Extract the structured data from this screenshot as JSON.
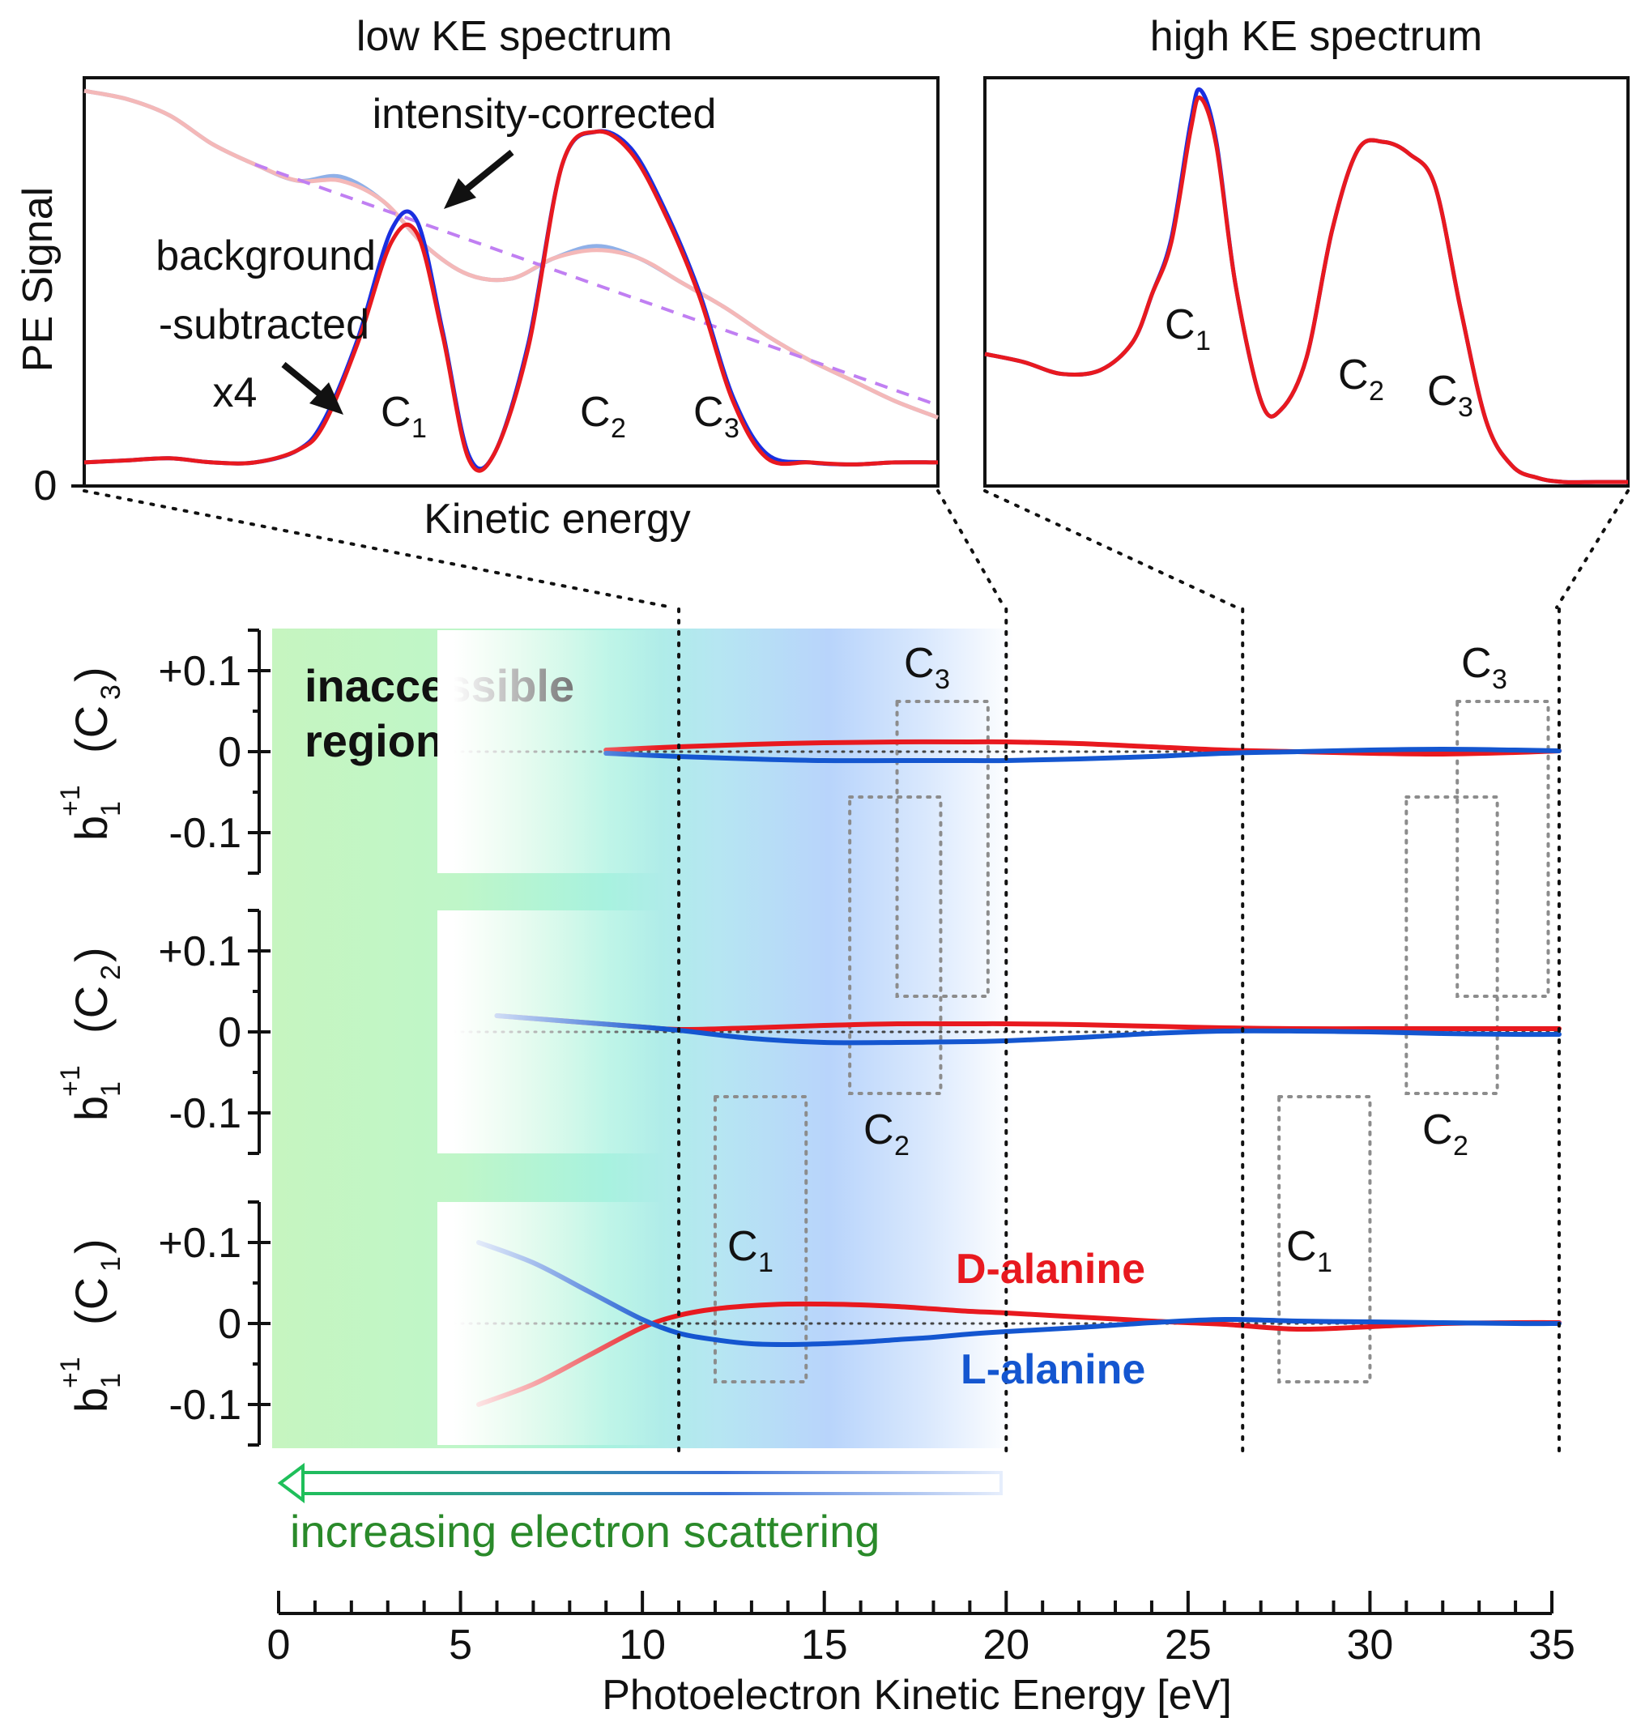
{
  "chart_data": [
    {
      "id": "low_ke",
      "type": "line",
      "title": "low KE spectrum",
      "xlabel": "Kinetic energy",
      "ylabel": "PE Signal",
      "y_tick_label": "0",
      "peak_labels": [
        {
          "text": "C",
          "sub": "1"
        },
        {
          "text": "C",
          "sub": "2"
        },
        {
          "text": "C",
          "sub": "3"
        }
      ],
      "annotations": {
        "intensity_corrected": "intensity-corrected",
        "background_line1": "background",
        "background_line2": "-subtracted",
        "scale": "x4"
      },
      "series": [
        {
          "name": "intensity-corrected (L)",
          "color": "#8fb0e8",
          "x": [
            0,
            0.05,
            0.1,
            0.15,
            0.2,
            0.25,
            0.3,
            0.35,
            0.4,
            0.45,
            0.5,
            0.55,
            0.6,
            0.65,
            0.7,
            0.75,
            0.8,
            0.85,
            0.9,
            0.95,
            1.0
          ],
          "y": [
            0.94,
            0.92,
            0.88,
            0.81,
            0.76,
            0.72,
            0.73,
            0.67,
            0.56,
            0.49,
            0.48,
            0.53,
            0.56,
            0.53,
            0.47,
            0.41,
            0.34,
            0.28,
            0.23,
            0.18,
            0.14
          ]
        },
        {
          "name": "intensity-corrected (D)",
          "color": "#f4b8b8",
          "x": [
            0,
            0.05,
            0.1,
            0.15,
            0.2,
            0.25,
            0.3,
            0.35,
            0.4,
            0.45,
            0.5,
            0.55,
            0.6,
            0.65,
            0.7,
            0.75,
            0.8,
            0.85,
            0.9,
            0.95,
            1.0
          ],
          "y": [
            0.94,
            0.92,
            0.88,
            0.81,
            0.76,
            0.72,
            0.72,
            0.67,
            0.56,
            0.49,
            0.48,
            0.53,
            0.55,
            0.53,
            0.47,
            0.41,
            0.34,
            0.28,
            0.23,
            0.18,
            0.14
          ]
        },
        {
          "name": "background",
          "color": "#c07ff2",
          "x": [
            0.2,
            1.0
          ],
          "y": [
            0.76,
            0.17
          ]
        },
        {
          "name": "background-subtracted x4 (L-alanine)",
          "color": "#1a2fe0",
          "x": [
            0,
            0.05,
            0.1,
            0.15,
            0.2,
            0.25,
            0.28,
            0.32,
            0.36,
            0.39,
            0.42,
            0.45,
            0.48,
            0.52,
            0.56,
            0.6,
            0.64,
            0.68,
            0.72,
            0.76,
            0.8,
            0.85,
            0.9,
            0.95,
            1.0
          ],
          "y": [
            0.03,
            0.035,
            0.04,
            0.03,
            0.03,
            0.06,
            0.13,
            0.33,
            0.6,
            0.62,
            0.35,
            0.05,
            0.05,
            0.32,
            0.76,
            0.84,
            0.8,
            0.65,
            0.45,
            0.19,
            0.05,
            0.03,
            0.025,
            0.03,
            0.03
          ]
        },
        {
          "name": "background-subtracted x4 (D-alanine)",
          "color": "#e8191f",
          "x": [
            0,
            0.05,
            0.1,
            0.15,
            0.2,
            0.25,
            0.28,
            0.32,
            0.36,
            0.39,
            0.42,
            0.45,
            0.48,
            0.52,
            0.56,
            0.6,
            0.64,
            0.68,
            0.72,
            0.76,
            0.8,
            0.85,
            0.9,
            0.95,
            1.0
          ],
          "y": [
            0.03,
            0.035,
            0.04,
            0.03,
            0.03,
            0.06,
            0.12,
            0.32,
            0.57,
            0.59,
            0.34,
            0.04,
            0.05,
            0.31,
            0.76,
            0.84,
            0.79,
            0.64,
            0.44,
            0.18,
            0.04,
            0.03,
            0.025,
            0.03,
            0.03
          ]
        }
      ]
    },
    {
      "id": "high_ke",
      "type": "line",
      "title": "high KE spectrum",
      "peak_labels": [
        {
          "text": "C",
          "sub": "1"
        },
        {
          "text": "C",
          "sub": "2"
        },
        {
          "text": "C",
          "sub": "3"
        }
      ],
      "series": [
        {
          "name": "L-alanine",
          "color": "#1a2fe0",
          "x": [
            0,
            0.06,
            0.12,
            0.18,
            0.23,
            0.26,
            0.29,
            0.32,
            0.335,
            0.36,
            0.39,
            0.43,
            0.46,
            0.5,
            0.54,
            0.58,
            0.62,
            0.66,
            0.7,
            0.74,
            0.78,
            0.82,
            0.86,
            0.9,
            0.95,
            1.0
          ],
          "y": [
            0.33,
            0.31,
            0.28,
            0.29,
            0.36,
            0.48,
            0.62,
            0.91,
            0.99,
            0.86,
            0.5,
            0.21,
            0.19,
            0.32,
            0.64,
            0.84,
            0.86,
            0.83,
            0.75,
            0.44,
            0.16,
            0.05,
            0.02,
            0.01,
            0.01,
            0.01
          ]
        },
        {
          "name": "D-alanine",
          "color": "#e8191f",
          "x": [
            0,
            0.06,
            0.12,
            0.18,
            0.23,
            0.26,
            0.29,
            0.32,
            0.335,
            0.36,
            0.39,
            0.43,
            0.46,
            0.5,
            0.54,
            0.58,
            0.62,
            0.66,
            0.7,
            0.74,
            0.78,
            0.82,
            0.86,
            0.9,
            0.95,
            1.0
          ],
          "y": [
            0.33,
            0.31,
            0.28,
            0.29,
            0.36,
            0.48,
            0.61,
            0.89,
            0.97,
            0.85,
            0.5,
            0.21,
            0.19,
            0.32,
            0.64,
            0.84,
            0.86,
            0.83,
            0.75,
            0.44,
            0.16,
            0.05,
            0.02,
            0.01,
            0.01,
            0.01
          ]
        }
      ]
    },
    {
      "id": "b1_panels",
      "type": "line",
      "xlabel": "Photoelectron Kinetic Energy [eV]",
      "xlim": [
        0,
        35
      ],
      "x_ticks": [
        "0",
        "5",
        "10",
        "15",
        "20",
        "25",
        "30",
        "35"
      ],
      "ylim": [
        -0.15,
        0.15
      ],
      "y_ticks": [
        "+0.1",
        "0",
        "-0.1"
      ],
      "inaccessible_label": [
        "inaccessible",
        "region"
      ],
      "scattering_label": "increasing electron scattering",
      "legend": {
        "d": "D-alanine",
        "l": "L-alanine"
      },
      "colors": {
        "d": "#e8191f",
        "l": "#1456d0",
        "scatter_text": "#2a8a2a"
      },
      "divider_ke": [
        11,
        20,
        26.5,
        35.2
      ],
      "panels": [
        {
          "name": "C3",
          "ylabel_main": "b",
          "ylabel_sub": "1",
          "ylabel_sup": "+1",
          "ylabel_paren": "(C",
          "ylabel_paren_sub": "3",
          "ylabel_close": ")",
          "box_labels": [
            {
              "text": "C",
              "sub": "3"
            },
            {
              "text": "C",
              "sub": "3"
            }
          ],
          "d": {
            "x": [
              9,
              11,
              13,
              15,
              17,
              19,
              20,
              22,
              24,
              26,
              28,
              30,
              32,
              34,
              35.2
            ],
            "y": [
              0.002,
              0.006,
              0.009,
              0.011,
              0.012,
              0.012,
              0.012,
              0.01,
              0.006,
              0.002,
              0,
              -0.002,
              -0.003,
              -0.001,
              0.001
            ]
          },
          "l": {
            "x": [
              9,
              11,
              13,
              15,
              17,
              19,
              20,
              22,
              24,
              26,
              28,
              30,
              32,
              34,
              35.2
            ],
            "y": [
              -0.002,
              -0.006,
              -0.009,
              -0.011,
              -0.011,
              -0.011,
              -0.011,
              -0.009,
              -0.006,
              -0.002,
              0,
              0.002,
              0.003,
              0.002,
              0.001
            ]
          }
        },
        {
          "name": "C2",
          "ylabel_main": "b",
          "ylabel_sub": "1",
          "ylabel_sup": "+1",
          "ylabel_paren": "(C",
          "ylabel_paren_sub": "2",
          "ylabel_close": ")",
          "box_labels": [
            {
              "text": "C",
              "sub": "2"
            },
            {
              "text": "C",
              "sub": "2"
            }
          ],
          "d": {
            "x": [
              6,
              8,
              10,
              11,
              13,
              15,
              17,
              19,
              20,
              22,
              24,
              26,
              28,
              30,
              32,
              34,
              35.2
            ],
            "y": [
              0.02,
              0.013,
              0.006,
              0.003,
              0.005,
              0.008,
              0.01,
              0.01,
              0.01,
              0.009,
              0.007,
              0.005,
              0.004,
              0.004,
              0.004,
              0.004,
              0.004
            ]
          },
          "l": {
            "x": [
              6,
              8,
              10,
              11,
              13,
              15,
              17,
              19,
              20,
              22,
              24,
              26,
              28,
              30,
              32,
              34,
              35.2
            ],
            "y": [
              0.02,
              0.013,
              0.006,
              0.002,
              -0.008,
              -0.013,
              -0.013,
              -0.012,
              -0.011,
              -0.007,
              -0.002,
              0.001,
              0.001,
              0,
              -0.002,
              -0.003,
              -0.003
            ]
          }
        },
        {
          "name": "C1",
          "ylabel_main": "b",
          "ylabel_sub": "1",
          "ylabel_sup": "+1",
          "ylabel_paren": "(C",
          "ylabel_paren_sub": "1",
          "ylabel_close": ")",
          "box_labels": [
            {
              "text": "C",
              "sub": "1"
            },
            {
              "text": "C",
              "sub": "1"
            }
          ],
          "d": {
            "x": [
              5.5,
              7,
              8.5,
              10,
              11,
              12,
              13,
              14,
              15,
              16,
              17,
              18,
              19,
              20,
              22,
              24,
              26,
              28,
              30,
              32,
              34,
              35.2
            ],
            "y": [
              -0.1,
              -0.075,
              -0.04,
              -0.005,
              0.01,
              0.018,
              0.022,
              0.024,
              0.024,
              0.023,
              0.021,
              0.018,
              0.015,
              0.013,
              0.008,
              0.003,
              -0.001,
              -0.007,
              -0.004,
              0,
              0.001,
              0.001
            ]
          },
          "l": {
            "x": [
              5.5,
              7,
              8.5,
              10,
              11,
              12,
              13,
              14,
              15,
              16,
              17,
              18,
              19,
              20,
              22,
              24,
              26,
              28,
              30,
              32,
              34,
              35.2
            ],
            "y": [
              0.1,
              0.075,
              0.04,
              0.005,
              -0.012,
              -0.02,
              -0.025,
              -0.026,
              -0.025,
              -0.023,
              -0.02,
              -0.017,
              -0.013,
              -0.01,
              -0.005,
              0.001,
              0.005,
              0.003,
              0.002,
              0.001,
              0,
              0
            ]
          }
        }
      ]
    }
  ]
}
